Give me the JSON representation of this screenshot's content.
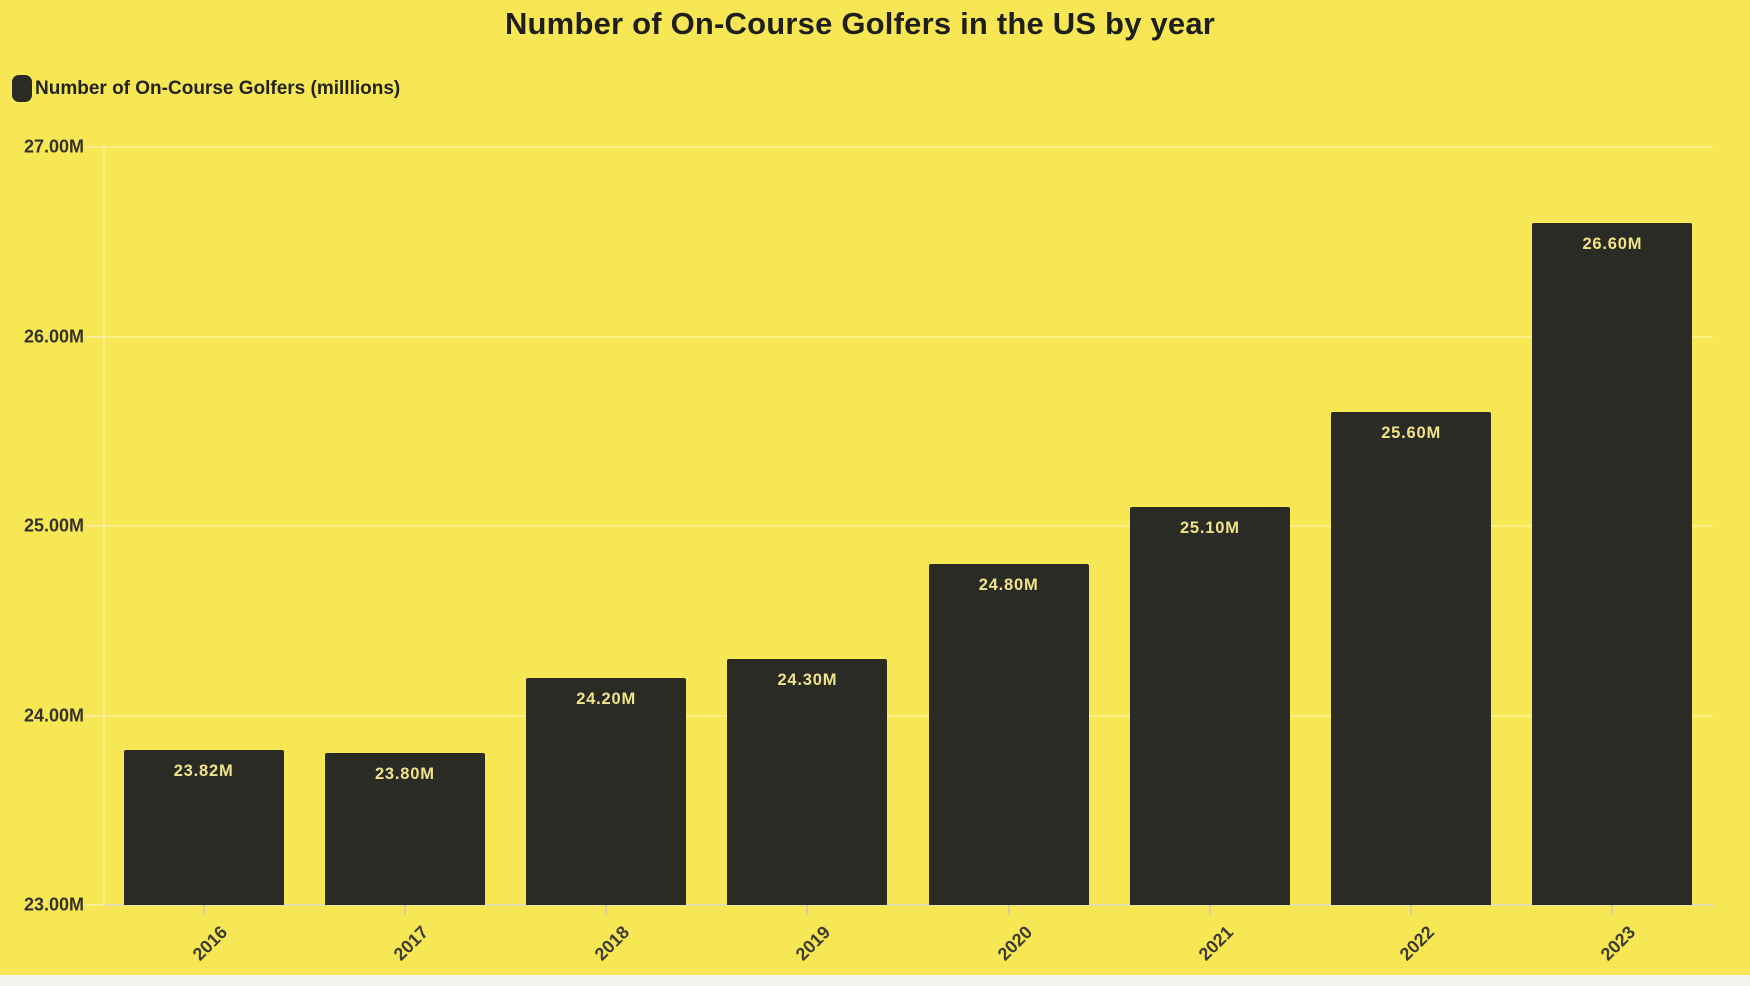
{
  "chart_data": {
    "type": "bar",
    "title": "Number of On-Course Golfers in the US by year",
    "categories": [
      "2016",
      "2017",
      "2018",
      "2019",
      "2020",
      "2021",
      "2022",
      "2023"
    ],
    "series": [
      {
        "name": "Number of On-Course Golfers (milllions)",
        "values": [
          23.82,
          23.8,
          24.2,
          24.3,
          24.8,
          25.1,
          25.6,
          26.6
        ]
      }
    ],
    "value_labels": [
      "23.82M",
      "23.80M",
      "24.20M",
      "24.30M",
      "24.80M",
      "25.10M",
      "25.60M",
      "26.60M"
    ],
    "xlabel": "",
    "ylabel": "",
    "y_tick_labels": [
      "27.00M",
      "26.00M",
      "25.00M",
      "24.00M",
      "23.00M"
    ],
    "ylim": [
      23,
      27
    ],
    "grid": true,
    "legend_position": "top-left"
  },
  "colors": {
    "background": "#f8e755",
    "bar": "#2b2b26",
    "value_label": "#f0e388",
    "title_text": "#1f1f1a"
  }
}
